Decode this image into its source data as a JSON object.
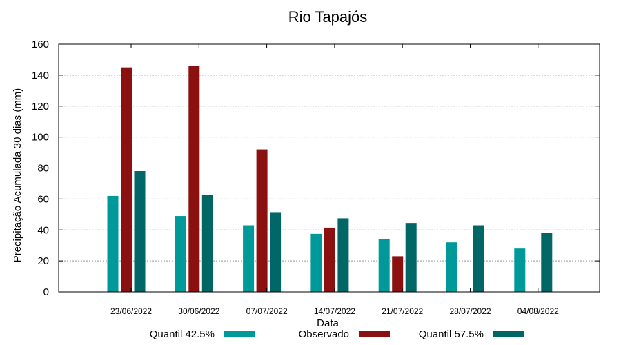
{
  "chart_data": {
    "type": "bar",
    "title": "Rio Tapajós",
    "xlabel": "Data",
    "ylabel": "Precipitação Acumulada 30 dias (mm)",
    "ylim": [
      0,
      160
    ],
    "yticks": [
      "0",
      "20",
      "40",
      "60",
      "80",
      "100",
      "120",
      "140",
      "160"
    ],
    "grid": true,
    "legend_position": "bottom",
    "categories": [
      "23/06/2022",
      "30/06/2022",
      "07/07/2022",
      "14/07/2022",
      "21/07/2022",
      "28/07/2022",
      "04/08/2022"
    ],
    "series": [
      {
        "name": "Quantil 42.5%",
        "color": "#009999",
        "values": [
          62,
          49,
          43,
          37.5,
          34,
          32,
          28
        ]
      },
      {
        "name": "Observado",
        "color": "#8b1010",
        "values": [
          145,
          146,
          92,
          41.5,
          23,
          null,
          null
        ]
      },
      {
        "name": "Quantil 57.5%",
        "color": "#006666",
        "values": [
          78,
          62.5,
          51.5,
          47.5,
          44.5,
          43,
          38
        ]
      }
    ]
  }
}
